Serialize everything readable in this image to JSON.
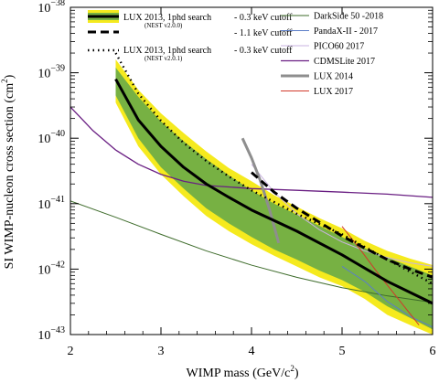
{
  "chart_data": {
    "type": "line",
    "title": "",
    "xlabel": "WIMP mass (GeV/c",
    "xlabel_sup": "2",
    "xlabel_close": ")",
    "ylabel": "SI WIMP-nucleon cross section (cm",
    "ylabel_sup": "2",
    "ylabel_close": ")",
    "xlim": [
      2,
      6
    ],
    "ylim": [
      1e-43,
      1e-38
    ],
    "yscale": "log",
    "grid": false,
    "legend_position": "top",
    "x_ticks": [
      {
        "value": 2,
        "label": "2"
      },
      {
        "value": 3,
        "label": "3"
      },
      {
        "value": 4,
        "label": "4"
      },
      {
        "value": 5,
        "label": "5"
      },
      {
        "value": 6,
        "label": "6"
      }
    ],
    "y_ticks": [
      {
        "value": -43,
        "base": "10",
        "exp": "−43"
      },
      {
        "value": -42,
        "base": "10",
        "exp": "−42"
      },
      {
        "value": -41,
        "base": "10",
        "exp": "−41"
      },
      {
        "value": -40,
        "base": "10",
        "exp": "−40"
      },
      {
        "value": -39,
        "base": "10",
        "exp": "−39"
      },
      {
        "value": -38,
        "base": "10",
        "exp": "−38"
      }
    ],
    "bands": [
      {
        "name": "LUX 2013, 1phd search (NEST v2.0.0) ±2σ",
        "color": "#f5ea1e",
        "x": [
          2.5,
          2.75,
          3.0,
          3.25,
          3.5,
          3.75,
          4.0,
          4.25,
          4.5,
          4.75,
          5.0,
          5.25,
          5.5,
          5.75,
          6.0
        ],
        "upper": [
          1.6e-39,
          5.5e-40,
          2.4e-40,
          1.2e-40,
          6.3e-41,
          3.5e-41,
          2.2e-41,
          1.35e-41,
          9e-42,
          6e-42,
          4.2e-42,
          2.7e-42,
          1.9e-42,
          1.45e-42,
          1.15e-42
        ],
        "lower": [
          3.5e-40,
          7.5e-41,
          2.8e-41,
          1.3e-41,
          6.5e-42,
          3.8e-42,
          2.4e-42,
          1.6e-42,
          1.1e-42,
          7.5e-43,
          5.5e-43,
          3.5e-43,
          2e-43,
          1.4e-43,
          1e-43
        ]
      },
      {
        "name": "LUX 2013, 1phd search (NEST v2.0.0) ±1σ",
        "color": "#77b143",
        "x": [
          2.5,
          2.75,
          3.0,
          3.25,
          3.5,
          3.75,
          4.0,
          4.25,
          4.5,
          4.75,
          5.0,
          5.25,
          5.5,
          5.75,
          6.0
        ],
        "upper": [
          1.2e-39,
          4.3e-40,
          1.8e-40,
          9e-41,
          4.8e-41,
          2.7e-41,
          1.6e-41,
          1e-41,
          6.8e-42,
          4.6e-42,
          3.1e-42,
          2.1e-42,
          1.5e-42,
          1.1e-42,
          8e-43
        ],
        "lower": [
          4.5e-40,
          1e-40,
          3.6e-41,
          1.7e-41,
          8.5e-42,
          5e-42,
          3.1e-42,
          2e-42,
          1.4e-42,
          9.5e-43,
          6.8e-43,
          4.5e-43,
          2.7e-43,
          1.8e-43,
          1.2e-43
        ]
      }
    ],
    "series": [
      {
        "name": "DarkSide 50 -2018",
        "color": "#3d6b2a",
        "width": 1,
        "dash": "",
        "x": [
          2.0,
          2.5,
          3.0,
          3.5,
          4.0,
          4.5,
          5.0,
          5.5,
          6.0
        ],
        "y": [
          1.1e-41,
          6.2e-42,
          3.4e-42,
          1.9e-42,
          1.15e-42,
          7.5e-43,
          5.2e-43,
          3.9e-43,
          3.1e-43
        ]
      },
      {
        "name": "PandaX-II - 2017",
        "color": "#5b7ec8",
        "width": 1,
        "dash": "",
        "x": [
          5.0,
          5.25,
          5.5,
          5.75,
          6.0
        ],
        "y": [
          1.1e-42,
          6.5e-43,
          3.2e-43,
          1.9e-43,
          1.3e-43
        ]
      },
      {
        "name": "PICO60 2017",
        "color": "#c9b3e0",
        "width": 1,
        "dash": "",
        "x": [
          4.0,
          4.25,
          4.5,
          4.75,
          5.0,
          5.25,
          5.5,
          5.75,
          6.0
        ],
        "y": [
          4e-41,
          1.5e-41,
          7e-42,
          4e-42,
          2.6e-42,
          1.9e-42,
          1.5e-42,
          1.25e-42,
          1.1e-42
        ]
      },
      {
        "name": "CDMSLite 2017",
        "color": "#6a1f83",
        "width": 1.3,
        "dash": "",
        "x": [
          2.0,
          2.25,
          2.5,
          2.75,
          3.0,
          3.25,
          3.5,
          4.0,
          4.5,
          5.0,
          5.5,
          6.0
        ],
        "y": [
          3e-40,
          1.3e-40,
          6.6e-41,
          4e-41,
          2.8e-41,
          2.2e-41,
          1.9e-41,
          1.7e-41,
          1.6e-41,
          1.5e-41,
          1.4e-41,
          1.25e-41
        ]
      },
      {
        "name": "LUX 2014",
        "color": "#8e8e8e",
        "width": 3,
        "dash": "",
        "x": [
          3.9,
          4.0,
          4.1,
          4.2,
          4.3
        ],
        "y": [
          1e-40,
          5e-41,
          2.2e-41,
          8e-42,
          2.5e-42
        ]
      },
      {
        "name": "LUX 2017",
        "color": "#d1392b",
        "width": 1,
        "dash": "",
        "x": [
          5.0,
          5.2,
          5.4,
          5.6,
          5.85
        ],
        "y": [
          4.5e-42,
          2e-42,
          8.5e-43,
          3.8e-43,
          1.4e-43
        ]
      },
      {
        "name": "- 0.3 keV cutoff (NEST v2.0.0)",
        "color": "#000000",
        "width": 3,
        "dash": "",
        "x": [
          2.5,
          2.75,
          3.0,
          3.25,
          3.5,
          3.75,
          4.0,
          4.5,
          5.0,
          5.5,
          6.0
        ],
        "y": [
          8e-40,
          1.9e-40,
          7.5e-41,
          3.6e-41,
          2e-41,
          1.25e-41,
          8e-42,
          3.8e-42,
          1.65e-42,
          6.5e-43,
          3e-43
        ]
      },
      {
        "name": "- 1.1 keV cutoff (NEST v2.0.0)",
        "color": "#000000",
        "width": 3,
        "dash": "9,5",
        "x": [
          4.0,
          4.25,
          4.5,
          4.75,
          5.0,
          5.25,
          5.5,
          5.75,
          6.0
        ],
        "y": [
          3e-41,
          1.5e-41,
          8.5e-42,
          5.2e-42,
          3.2e-42,
          2.1e-42,
          1.4e-42,
          1e-42,
          7.5e-43
        ]
      },
      {
        "name": "- 0.3 keV cutoff (NEST v2.0.1)",
        "color": "#000000",
        "width": 2.4,
        "dash": "1.5,4",
        "x": [
          2.5,
          2.75,
          3.0,
          3.25,
          3.5,
          3.75,
          4.0,
          4.5,
          5.0,
          5.5,
          6.0
        ],
        "y": [
          2e-39,
          4.8e-40,
          1.85e-40,
          8.5e-41,
          4.5e-41,
          2.6e-41,
          1.6e-41,
          7e-42,
          3.4e-42,
          1.4e-42,
          6e-43
        ]
      }
    ],
    "legend_left": {
      "row1_label": "LUX 2013, 1phd search",
      "row1_sub": "(NEST v2.0.0)",
      "row1_cut_a": "- 0.3 keV cutoff",
      "row1_cut_b": "- 1.1 keV cutoff",
      "row2_label": "LUX 2013, 1phd search",
      "row2_sub": "(NEST v2.0.1)",
      "row2_cut": "- 0.3 keV cutoff"
    },
    "legend_right": [
      {
        "label": "DarkSide 50 -2018",
        "color": "#3d6b2a",
        "width": 1
      },
      {
        "label": "PandaX-II - 2017",
        "color": "#5b7ec8",
        "width": 1
      },
      {
        "label": "PICO60 2017",
        "color": "#c9b3e0",
        "width": 1
      },
      {
        "label": "CDMSLite 2017",
        "color": "#6a1f83",
        "width": 1.3
      },
      {
        "label": "LUX 2014",
        "color": "#8e8e8e",
        "width": 3
      },
      {
        "label": "LUX 2017",
        "color": "#d1392b",
        "width": 1
      }
    ]
  }
}
